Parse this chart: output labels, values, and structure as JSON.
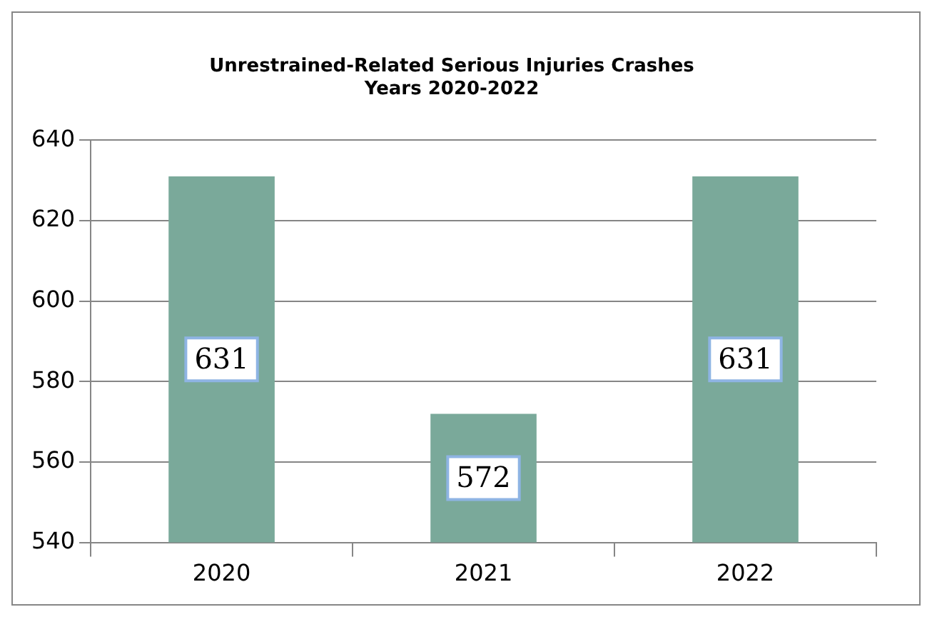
{
  "chart_data": {
    "type": "bar",
    "title": "Unrestrained-Related Serious Injuries Crashes\nYears 2020-2022",
    "categories": [
      "2020",
      "2021",
      "2022"
    ],
    "values": [
      631,
      572,
      631
    ],
    "color": "#7aa99a",
    "ylim": [
      540,
      640
    ],
    "yticks": [
      540,
      560,
      580,
      600,
      620,
      640
    ],
    "grid": "y",
    "legend": false,
    "data_labels": true
  }
}
